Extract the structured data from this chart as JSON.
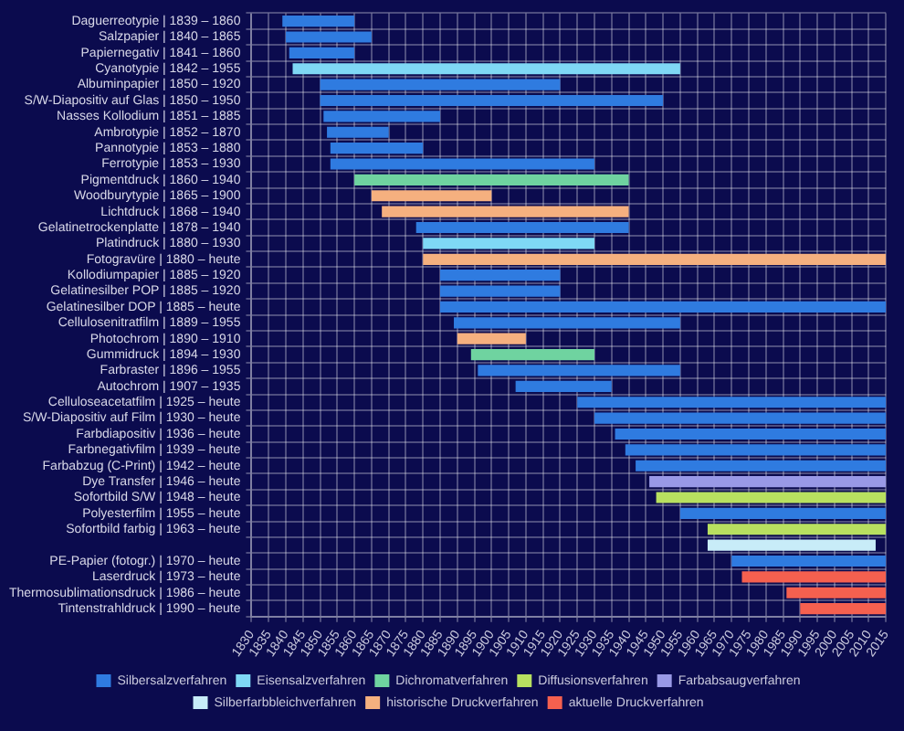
{
  "chart_data": {
    "type": "bar",
    "orientation": "horizontal",
    "grid": true,
    "legend": "bottom",
    "categories": [
      "Daguerreotypie | 1839 – 1860",
      "Salzpapier | 1840 – 1865",
      "Papiernegativ | 1841 – 1860",
      "Cyanotypie | 1842 – 1955",
      "Albuminpapier | 1850 – 1920",
      "S/W-Diapositiv auf Glas | 1850 – 1950",
      "Nasses Kollodium | 1851 – 1885",
      "Ambrotypie | 1852 – 1870",
      "Pannotypie | 1853 – 1880",
      "Ferrotypie | 1853 – 1930",
      "Pigmentdruck | 1860 – 1940",
      "Woodburytypie | 1865 – 1900",
      "Lichtdruck | 1868 – 1940",
      "Gelatinetrockenplatte | 1878 – 1940",
      "Platindruck | 1880 – 1930",
      "Fotogravüre | 1880 – heute",
      "Kollodiumpapier | 1885 – 1920",
      "Gelatinesilber POP | 1885 – 1920",
      "Gelatinesilber DOP | 1885 – heute",
      "Cellulosenitratfilm | 1889 – 1955",
      "Photochrom | 1890 – 1910",
      "Gummidruck | 1894 – 1930",
      "Farbraster | 1896 – 1955",
      "Autochrom | 1907 – 1935",
      "Celluloseacetatfilm | 1925 – heute",
      "S/W-Diapositiv auf Film | 1930 – heute",
      "Farbdiapositiv | 1936 – heute",
      "Farbnegativfilm | 1939 – heute",
      "Farbabzug (C-Print) | 1942 – heute",
      "Dye Transfer | 1946 – heute",
      "Sofortbild S/W | 1948 – heute",
      "Polyesterfilm | 1955 – heute",
      "Sofortbild farbig | 1963 – heute",
      null,
      "PE-Papier (fotogr.) | 1970 – heute",
      "Laserdruck | 1973 – heute",
      "Thermosublimationsdruck | 1986 – heute",
      "Tintenstrahldruck | 1990 – heute"
    ],
    "xlim": [
      1830,
      2015
    ],
    "xticks": [
      1830,
      1835,
      1840,
      1845,
      1850,
      1855,
      1860,
      1865,
      1870,
      1875,
      1880,
      1885,
      1890,
      1895,
      1900,
      1905,
      1910,
      1915,
      1920,
      1925,
      1930,
      1935,
      1940,
      1945,
      1950,
      1955,
      1960,
      1965,
      1970,
      1975,
      1980,
      1985,
      1990,
      1995,
      2000,
      2005,
      2010,
      2015
    ],
    "series": [
      {
        "name": "Silbersalzverfahren",
        "color": "#2f7be0",
        "values": [
          21,
          25,
          19,
          null,
          70,
          100,
          34,
          18,
          27,
          77,
          null,
          null,
          null,
          62,
          null,
          null,
          35,
          35,
          130,
          66,
          null,
          null,
          59,
          28,
          90,
          85,
          79,
          76,
          73,
          null,
          null,
          60,
          null,
          null,
          45,
          null,
          null,
          null
        ],
        "base": [
          1839,
          1840,
          1841,
          null,
          1850,
          1850,
          1851,
          1852,
          1853,
          1853,
          null,
          null,
          null,
          1878,
          null,
          null,
          1885,
          1885,
          1885,
          1889,
          null,
          null,
          1896,
          1907,
          1925,
          1930,
          1936,
          1939,
          1942,
          null,
          null,
          1955,
          null,
          null,
          1970,
          null,
          null,
          null
        ]
      },
      {
        "name": "Eisensalzverfahren",
        "color": "#7fd8f5",
        "values": [
          null,
          null,
          null,
          113,
          null,
          null,
          null,
          null,
          null,
          null,
          null,
          null,
          null,
          null,
          50,
          null,
          null,
          null,
          null,
          null,
          null,
          null,
          null,
          null,
          null,
          null,
          null,
          null,
          null,
          null,
          null,
          null,
          null,
          null,
          null,
          null,
          null,
          null
        ],
        "base": [
          null,
          null,
          null,
          1842,
          null,
          null,
          null,
          null,
          null,
          null,
          null,
          null,
          null,
          null,
          1880,
          null,
          null,
          null,
          null,
          null,
          null,
          null,
          null,
          null,
          null,
          null,
          null,
          null,
          null,
          null,
          null,
          null,
          null,
          null,
          null,
          null,
          null,
          null
        ]
      },
      {
        "name": "Dichromatverfahren",
        "color": "#6fd3a0",
        "values": [
          null,
          null,
          null,
          null,
          null,
          null,
          null,
          null,
          null,
          null,
          80,
          null,
          null,
          null,
          null,
          null,
          null,
          null,
          null,
          null,
          null,
          36,
          null,
          null,
          null,
          null,
          null,
          null,
          null,
          null,
          null,
          null,
          null,
          null,
          null,
          null,
          null,
          null
        ],
        "base": [
          null,
          null,
          null,
          null,
          null,
          null,
          null,
          null,
          null,
          null,
          1860,
          null,
          null,
          null,
          null,
          null,
          null,
          null,
          null,
          null,
          null,
          1894,
          null,
          null,
          null,
          null,
          null,
          null,
          null,
          null,
          null,
          null,
          null,
          null,
          null,
          null,
          null,
          null
        ]
      },
      {
        "name": "Diffusionsverfahren",
        "color": "#b8e060",
        "values": [
          null,
          null,
          null,
          null,
          null,
          null,
          null,
          null,
          null,
          null,
          null,
          null,
          null,
          null,
          null,
          null,
          null,
          null,
          null,
          null,
          null,
          null,
          null,
          null,
          null,
          null,
          null,
          null,
          null,
          null,
          67,
          null,
          52,
          null,
          null,
          null,
          null,
          null
        ],
        "base": [
          null,
          null,
          null,
          null,
          null,
          null,
          null,
          null,
          null,
          null,
          null,
          null,
          null,
          null,
          null,
          null,
          null,
          null,
          null,
          null,
          null,
          null,
          null,
          null,
          null,
          null,
          null,
          null,
          null,
          null,
          1948,
          null,
          1963,
          null,
          null,
          null,
          null,
          null
        ]
      },
      {
        "name": "Farbabsaugverfahren",
        "color": "#9999e6",
        "values": [
          null,
          null,
          null,
          null,
          null,
          null,
          null,
          null,
          null,
          null,
          null,
          null,
          null,
          null,
          null,
          null,
          null,
          null,
          null,
          null,
          null,
          null,
          null,
          null,
          null,
          null,
          null,
          null,
          null,
          69,
          null,
          null,
          null,
          null,
          null,
          null,
          null,
          null
        ],
        "base": [
          null,
          null,
          null,
          null,
          null,
          null,
          null,
          null,
          null,
          null,
          null,
          null,
          null,
          null,
          null,
          null,
          null,
          null,
          null,
          null,
          null,
          null,
          null,
          null,
          null,
          null,
          null,
          null,
          null,
          1946,
          null,
          null,
          null,
          null,
          null,
          null,
          null,
          null
        ]
      },
      {
        "name": "Silberfarbbleichverfahren",
        "color": "#c8ecf8",
        "values": [
          null,
          null,
          null,
          null,
          null,
          null,
          null,
          null,
          null,
          null,
          null,
          null,
          null,
          null,
          null,
          null,
          null,
          null,
          null,
          null,
          null,
          null,
          null,
          null,
          null,
          null,
          null,
          null,
          null,
          null,
          null,
          null,
          null,
          49,
          null,
          null,
          null,
          null
        ],
        "base": [
          null,
          null,
          null,
          null,
          null,
          null,
          null,
          null,
          null,
          null,
          null,
          null,
          null,
          null,
          null,
          null,
          null,
          null,
          null,
          null,
          null,
          null,
          null,
          null,
          null,
          null,
          null,
          null,
          null,
          null,
          null,
          null,
          null,
          1963,
          null,
          null,
          null,
          null
        ]
      },
      {
        "name": "historische Druckverfahren",
        "color": "#f5b07f",
        "values": [
          null,
          null,
          null,
          null,
          null,
          null,
          null,
          null,
          null,
          null,
          null,
          35,
          72,
          null,
          null,
          135,
          null,
          null,
          null,
          null,
          20,
          null,
          null,
          null,
          null,
          null,
          null,
          null,
          null,
          null,
          null,
          null,
          null,
          null,
          null,
          null,
          null,
          null
        ],
        "base": [
          null,
          null,
          null,
          null,
          null,
          null,
          null,
          null,
          null,
          null,
          null,
          1865,
          1868,
          null,
          null,
          1880,
          null,
          null,
          null,
          null,
          1890,
          null,
          null,
          null,
          null,
          null,
          null,
          null,
          null,
          null,
          null,
          null,
          null,
          null,
          null,
          null,
          null,
          null
        ]
      },
      {
        "name": "aktuelle Druckverfahren",
        "color": "#f5604f",
        "values": [
          null,
          null,
          null,
          null,
          null,
          null,
          null,
          null,
          null,
          null,
          null,
          null,
          null,
          null,
          null,
          null,
          null,
          null,
          null,
          null,
          null,
          null,
          null,
          null,
          null,
          null,
          null,
          null,
          null,
          null,
          null,
          null,
          null,
          null,
          null,
          42,
          29,
          25
        ],
        "base": [
          null,
          null,
          null,
          null,
          null,
          null,
          null,
          null,
          null,
          null,
          null,
          null,
          null,
          null,
          null,
          null,
          null,
          null,
          null,
          null,
          null,
          null,
          null,
          null,
          null,
          null,
          null,
          null,
          null,
          null,
          null,
          null,
          null,
          null,
          null,
          1973,
          1986,
          1990
        ]
      }
    ]
  }
}
